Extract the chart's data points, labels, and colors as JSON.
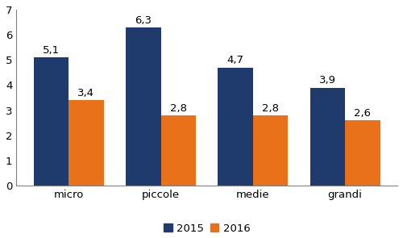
{
  "categories": [
    "micro",
    "piccole",
    "medie",
    "grandi"
  ],
  "values_2015": [
    5.1,
    6.3,
    4.7,
    3.9
  ],
  "values_2016": [
    3.4,
    2.8,
    2.8,
    2.6
  ],
  "color_2015": "#1F3B6E",
  "color_2016": "#E8711A",
  "legend_labels": [
    "2015",
    "2016"
  ],
  "ylim": [
    0,
    7
  ],
  "yticks": [
    0,
    1,
    2,
    3,
    4,
    5,
    6,
    7
  ],
  "bar_width": 0.38,
  "label_fontsize": 9.5,
  "tick_fontsize": 9.5,
  "legend_fontsize": 9.5,
  "background_color": "#ffffff"
}
